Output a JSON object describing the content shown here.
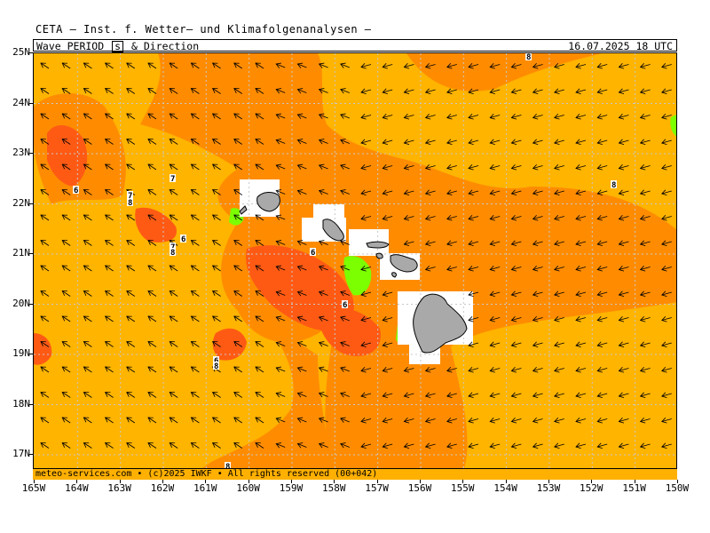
{
  "header": {
    "title": "CETA — Inst. f. Wetter— und Klimafolgenanalysen —"
  },
  "subheader": {
    "label_pre": "Wave PERIOD",
    "unit": "s",
    "label_post": "& Direction",
    "valid_time": "16.07.2025 18 UTC"
  },
  "footer": {
    "credit": "meteo-services.com • (c)2025 IWKF • All rights reserved (00+042)"
  },
  "axes": {
    "lat_labels": [
      "25N",
      "24N",
      "23N",
      "22N",
      "21N",
      "20N",
      "19N",
      "18N",
      "17N"
    ],
    "lon_labels": [
      "165W",
      "164W",
      "163W",
      "162W",
      "161W",
      "160W",
      "159W",
      "158W",
      "157W",
      "156W",
      "155W",
      "154W",
      "153W",
      "152W",
      "151W",
      "150W"
    ]
  },
  "contour_labels": [
    {
      "text": "6"
    },
    {
      "text": "7"
    },
    {
      "text": "7"
    },
    {
      "text": "8"
    },
    {
      "text": "6"
    },
    {
      "text": "7"
    },
    {
      "text": "8"
    },
    {
      "text": "6"
    },
    {
      "text": "6"
    },
    {
      "text": "6"
    },
    {
      "text": "8"
    },
    {
      "text": "8"
    },
    {
      "text": "8"
    },
    {
      "text": "8"
    }
  ],
  "legend_colors": {
    "period_8_plus": "#ffb400",
    "period_7_8": "#ff8c00",
    "period_6_7": "#ff5a14",
    "period_5_6": "#ffb400",
    "period_low": "#7cff00",
    "land": "#a9a9a9",
    "masked": "#ffffff"
  }
}
